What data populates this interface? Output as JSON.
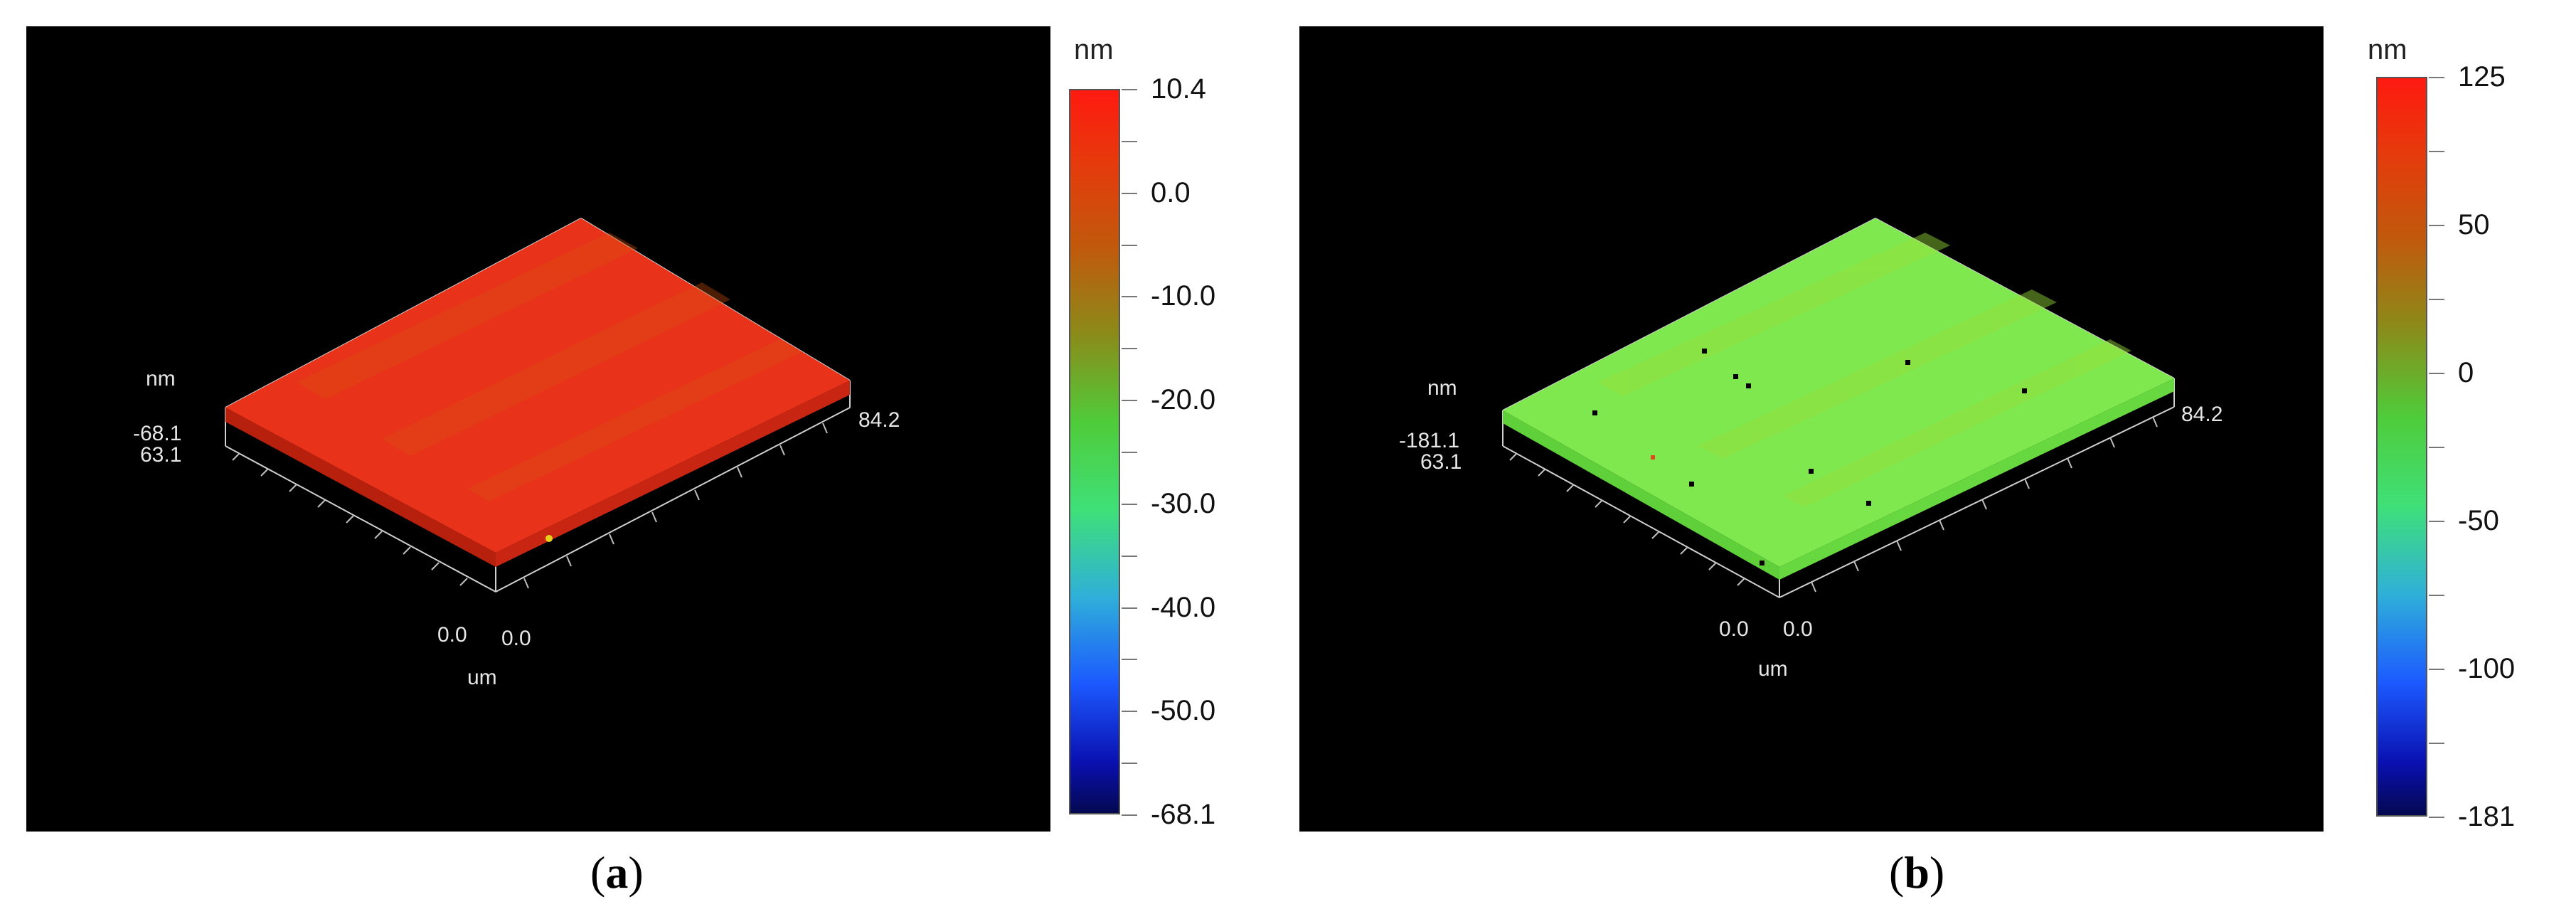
{
  "figure": {
    "panels": [
      {
        "id": "a",
        "caption_letter": "a",
        "surface_color": "#e8321a",
        "axis_unit_z": "nm",
        "axis_unit_xy": "um",
        "z_min_label": "-68.1",
        "y_extent_label": "63.1",
        "x_extent_label": "84.2",
        "origin_x_label": "0.0",
        "origin_y_label": "0.0",
        "colorbar": {
          "unit": "nm",
          "ticks": [
            "10.4",
            "0.0",
            "-10.0",
            "-20.0",
            "-30.0",
            "-40.0",
            "-50.0",
            "-68.1"
          ],
          "min": -68.1,
          "max": 10.4
        }
      },
      {
        "id": "b",
        "caption_letter": "b",
        "surface_color": "#7ee84e",
        "axis_unit_z": "nm",
        "axis_unit_xy": "um",
        "z_min_label": "-181.1",
        "y_extent_label": "63.1",
        "x_extent_label": "84.2",
        "origin_x_label": "0.0",
        "origin_y_label": "0.0",
        "colorbar": {
          "unit": "nm",
          "ticks": [
            "125",
            "50",
            "0",
            "-50",
            "-100",
            "-181"
          ],
          "min": -181,
          "max": 125
        }
      }
    ]
  }
}
